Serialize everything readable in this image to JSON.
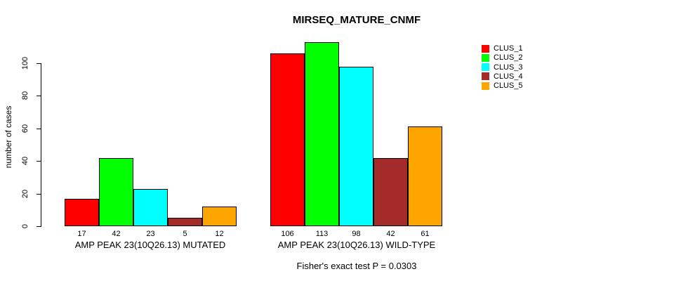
{
  "chart_data": {
    "type": "bar",
    "title": "MIRSEQ_MATURE_CNMF",
    "ylabel": "number of cases",
    "xlabel": "",
    "footer": "Fisher's exact test P = 0.0303",
    "ylim": [
      0,
      100
    ],
    "yticks": [
      0,
      20,
      40,
      60,
      80,
      100
    ],
    "grid": false,
    "legend_position": "top-right",
    "series": [
      {
        "name": "CLUS_1",
        "color": "#FF0000"
      },
      {
        "name": "CLUS_2",
        "color": "#00FF00"
      },
      {
        "name": "CLUS_3",
        "color": "#00FFFF"
      },
      {
        "name": "CLUS_4",
        "color": "#A52A2A"
      },
      {
        "name": "CLUS_5",
        "color": "#FFA500"
      }
    ],
    "groups": [
      {
        "label": "AMP PEAK 23(10Q26.13) MUTATED",
        "values": [
          17,
          42,
          23,
          5,
          12
        ]
      },
      {
        "label": "AMP PEAK 23(10Q26.13) WILD-TYPE",
        "values": [
          106,
          113,
          98,
          42,
          61
        ]
      }
    ]
  }
}
